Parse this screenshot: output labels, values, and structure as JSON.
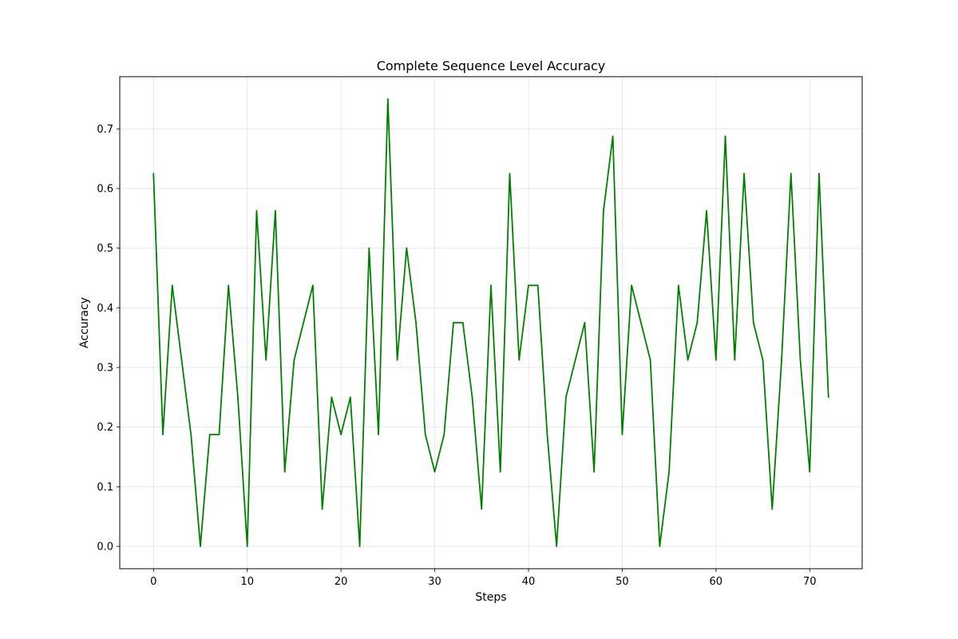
{
  "chart_data": {
    "type": "line",
    "title": "Complete Sequence Level Accuracy",
    "xlabel": "Steps",
    "ylabel": "Accuracy",
    "xlim": [
      -3.6,
      75.6
    ],
    "ylim": [
      -0.0375,
      0.7875
    ],
    "grid": true,
    "x_ticks": [
      0,
      10,
      20,
      30,
      40,
      50,
      60,
      70
    ],
    "y_ticks": [
      0.0,
      0.1,
      0.2,
      0.3,
      0.4,
      0.5,
      0.6,
      0.7
    ],
    "x_tick_labels": [
      "0",
      "10",
      "20",
      "30",
      "40",
      "50",
      "60",
      "70"
    ],
    "y_tick_labels": [
      "0.0",
      "0.1",
      "0.2",
      "0.3",
      "0.4",
      "0.5",
      "0.6",
      "0.7"
    ],
    "series": [
      {
        "color": "#008000",
        "x": [
          0,
          1,
          2,
          3,
          4,
          5,
          6,
          7,
          8,
          9,
          10,
          11,
          12,
          13,
          14,
          15,
          16,
          17,
          18,
          19,
          20,
          21,
          22,
          23,
          24,
          25,
          26,
          27,
          28,
          29,
          30,
          31,
          32,
          33,
          34,
          35,
          36,
          37,
          38,
          39,
          40,
          41,
          42,
          43,
          44,
          45,
          46,
          47,
          48,
          49,
          50,
          51,
          52,
          53,
          54,
          55,
          56,
          57,
          58,
          59,
          60,
          61,
          62,
          63,
          64,
          65,
          66,
          67,
          68,
          69,
          70,
          71,
          72
        ],
        "values": [
          0.625,
          0.1875,
          0.4375,
          0.3125,
          0.1875,
          0.0,
          0.1875,
          0.1875,
          0.4375,
          0.25,
          0.0,
          0.5625,
          0.3125,
          0.5625,
          0.125,
          0.3125,
          0.375,
          0.4375,
          0.0625,
          0.25,
          0.1875,
          0.25,
          0.0,
          0.5,
          0.1875,
          0.75,
          0.3125,
          0.5,
          0.375,
          0.1875,
          0.125,
          0.1875,
          0.375,
          0.375,
          0.25,
          0.0625,
          0.4375,
          0.125,
          0.625,
          0.3125,
          0.4375,
          0.4375,
          0.1875,
          0.0,
          0.25,
          0.3125,
          0.375,
          0.125,
          0.5625,
          0.6875,
          0.1875,
          0.4375,
          0.375,
          0.3125,
          0.0,
          0.125,
          0.4375,
          0.3125,
          0.375,
          0.5625,
          0.3125,
          0.6875,
          0.3125,
          0.625,
          0.375,
          0.3125,
          0.0625,
          0.3125,
          0.625,
          0.3125,
          0.125,
          0.625,
          0.25
        ]
      }
    ]
  }
}
